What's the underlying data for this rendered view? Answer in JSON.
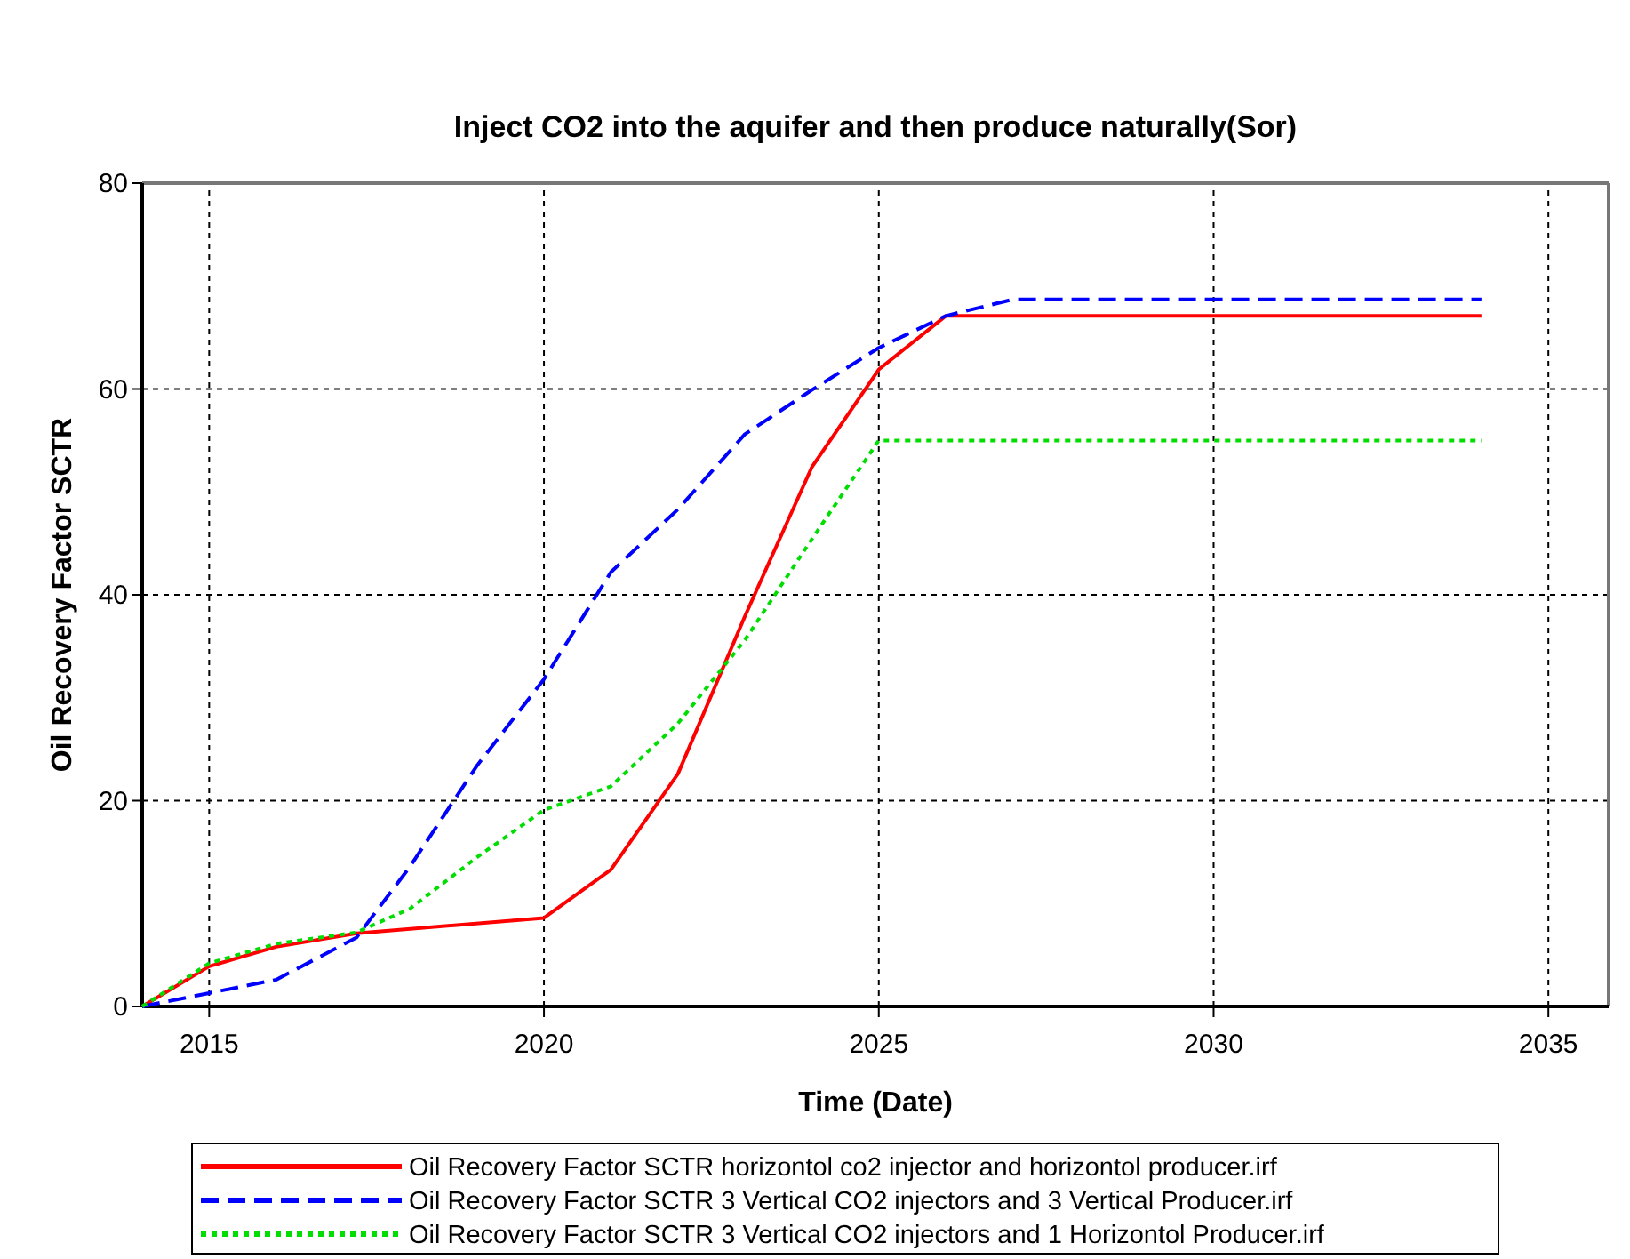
{
  "chart_data": {
    "type": "line",
    "title": "Inject CO2 into the aquifer and then produce naturally(Sor)",
    "xlabel": "Time (Date)",
    "ylabel": "Oil Recovery Factor SCTR",
    "xlim": [
      2014,
      2035.9
    ],
    "xticks": [
      2015,
      2020,
      2025,
      2030,
      2035
    ],
    "ylim": [
      0,
      80
    ],
    "yticks": [
      0,
      20,
      40,
      60,
      80
    ],
    "grid": true,
    "legend": "bottom",
    "marker": "none",
    "series": [
      {
        "name": "Oil Recovery Factor SCTR horizontol co2 injector and horizontol producer.irf",
        "color": "#ff0000",
        "line_style": "solid",
        "x": [
          2014,
          2015,
          2016,
          2017.2,
          2020,
          2021,
          2022,
          2023,
          2024,
          2025,
          2026,
          2034
        ],
        "values": [
          0,
          3.9,
          5.8,
          7.1,
          8.6,
          13.3,
          22.6,
          37.9,
          52.4,
          61.9,
          67.1,
          67.1
        ]
      },
      {
        "name": "Oil Recovery Factor SCTR 3 Vertical CO2 injectors and 3 Vertical Producer.irf",
        "color": "#0000ff",
        "line_style": "dashed",
        "x": [
          2014,
          2015,
          2016,
          2017.2,
          2018,
          2019,
          2020,
          2021,
          2022,
          2023,
          2024,
          2025,
          2026,
          2027,
          2034
        ],
        "values": [
          0,
          1.3,
          2.6,
          6.7,
          13.6,
          23.4,
          31.8,
          42.2,
          48.3,
          55.6,
          59.9,
          64,
          67.1,
          68.7,
          68.7
        ]
      },
      {
        "name": "Oil Recovery Factor SCTR 3 Vertical CO2 injectors and 1 Horizontol Producer.irf",
        "color": "#00dd00",
        "line_style": "dotted",
        "x": [
          2014,
          2015,
          2016,
          2017.2,
          2018,
          2019,
          2020,
          2021,
          2022,
          2023,
          2024,
          2025,
          2034
        ],
        "values": [
          0,
          4.2,
          6.1,
          7.2,
          9.5,
          14.5,
          19.1,
          21.4,
          27.5,
          35.6,
          45.4,
          55,
          55
        ]
      }
    ]
  }
}
